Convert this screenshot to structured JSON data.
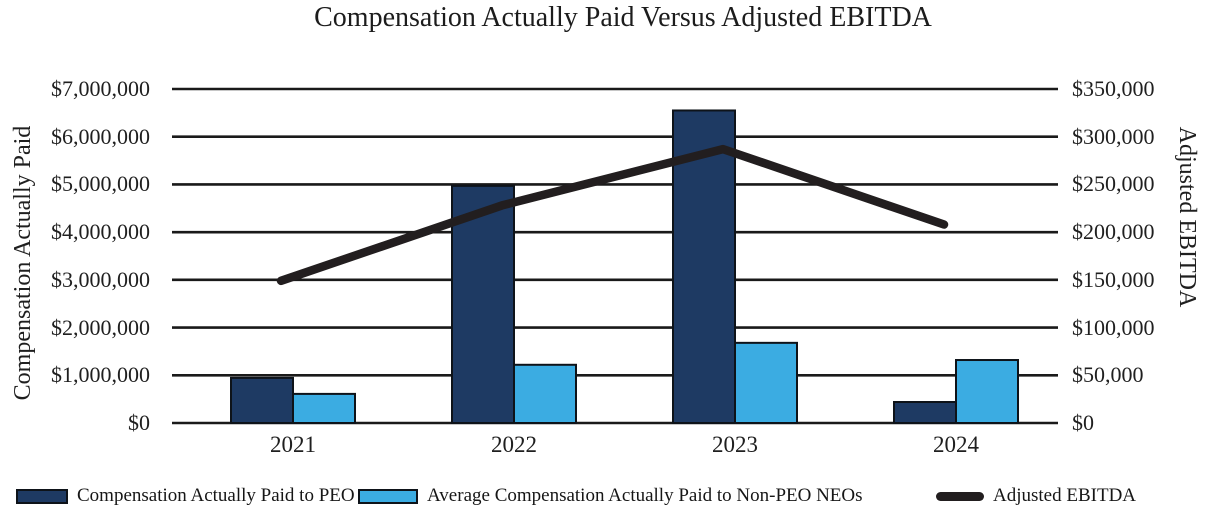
{
  "chart_data": {
    "type": "bar",
    "title": "Compensation Actually Paid Versus Adjusted EBITDA",
    "categories": [
      "2021",
      "2022",
      "2023",
      "2024"
    ],
    "series": [
      {
        "name": "Compensation Actually Paid to PEO",
        "type": "bar",
        "axis": "left",
        "color": "#1e3a63",
        "values": [
          945000,
          4970000,
          6550000,
          440000
        ]
      },
      {
        "name": "Average Compensation Actually Paid to Non-PEO NEOs",
        "type": "bar",
        "axis": "left",
        "color": "#3bace2",
        "values": [
          610000,
          1220000,
          1680000,
          1320000
        ]
      },
      {
        "name": "Adjusted EBITDA",
        "type": "line",
        "axis": "right",
        "color": "#221e1f",
        "values": [
          149000,
          228000,
          287000,
          208000
        ]
      }
    ],
    "left_axis": {
      "label": "Compensation Actually Paid",
      "range": [
        0,
        7000000
      ],
      "step": 1000000
    },
    "right_axis": {
      "label": "Adjusted EBITDA",
      "range": [
        0,
        350000
      ],
      "step": 50000
    },
    "grid": "horizontal",
    "legend_position": "bottom"
  },
  "ticks": {
    "left": [
      "$7,000,000",
      "$6,000,000",
      "$5,000,000",
      "$4,000,000",
      "$3,000,000",
      "$2,000,000",
      "$1,000,000",
      "$0"
    ],
    "right": [
      "$350,000",
      "$300,000",
      "$250,000",
      "$200,000",
      "$150,000",
      "$100,000",
      "$50,000",
      "$0"
    ]
  },
  "colors": {
    "grid": "#1a1a1a",
    "bar_outline": "#0e1319",
    "text": "#1c1c1c"
  }
}
